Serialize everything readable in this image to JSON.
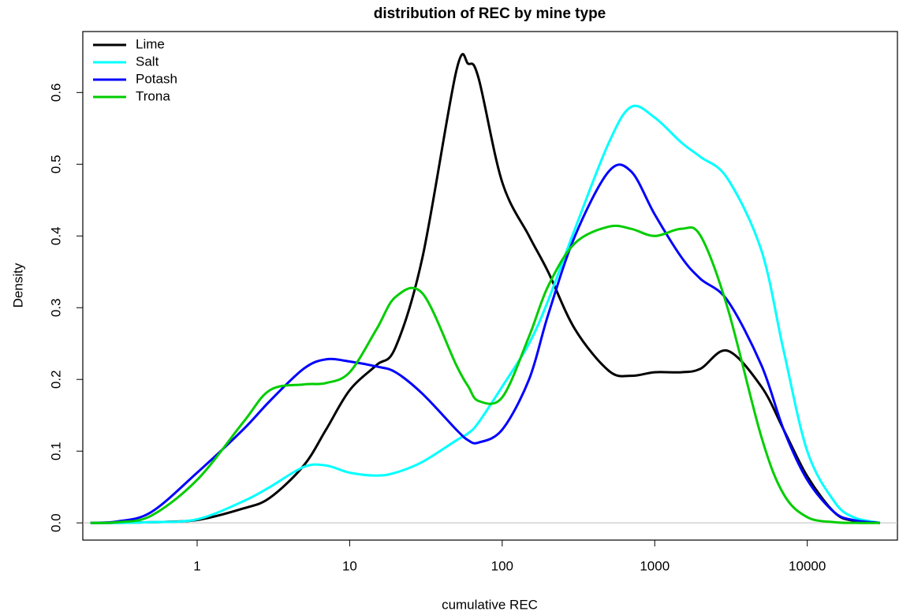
{
  "chart_data": {
    "type": "line",
    "title": "distribution of REC by mine type",
    "x_label": "cumulative REC",
    "y_label": "Density",
    "xscale": "log",
    "legend": "top-left",
    "hline": 0,
    "hline_color": "#bebebe",
    "x": [
      0.2,
      0.3,
      0.5,
      1,
      2,
      3,
      5,
      7,
      10,
      15,
      20,
      30,
      50,
      60,
      70,
      100,
      150,
      200,
      300,
      500,
      700,
      1000,
      1500,
      2000,
      3000,
      5000,
      7000,
      10000,
      15000,
      20000,
      30000
    ],
    "series": [
      {
        "name": "Lime",
        "color": "#000000",
        "values": [
          0,
          0,
          0.001,
          0.004,
          0.02,
          0.035,
          0.08,
          0.13,
          0.185,
          0.22,
          0.245,
          0.37,
          0.63,
          0.64,
          0.62,
          0.475,
          0.4,
          0.35,
          0.27,
          0.212,
          0.205,
          0.21,
          0.21,
          0.215,
          0.24,
          0.19,
          0.13,
          0.065,
          0.015,
          0.003,
          0
        ]
      },
      {
        "name": "Salt",
        "color": "#00ffff",
        "values": [
          0,
          0,
          0.001,
          0.005,
          0.03,
          0.05,
          0.078,
          0.08,
          0.07,
          0.066,
          0.07,
          0.085,
          0.115,
          0.125,
          0.14,
          0.19,
          0.25,
          0.31,
          0.41,
          0.53,
          0.58,
          0.565,
          0.53,
          0.51,
          0.48,
          0.38,
          0.24,
          0.1,
          0.03,
          0.008,
          0
        ]
      },
      {
        "name": "Potash",
        "color": "#0000ff",
        "values": [
          0,
          0.002,
          0.015,
          0.07,
          0.13,
          0.17,
          0.215,
          0.228,
          0.225,
          0.218,
          0.21,
          0.18,
          0.13,
          0.115,
          0.112,
          0.13,
          0.2,
          0.29,
          0.4,
          0.49,
          0.49,
          0.43,
          0.37,
          0.34,
          0.31,
          0.22,
          0.13,
          0.06,
          0.015,
          0.004,
          0
        ]
      },
      {
        "name": "Trona",
        "color": "#00cd00",
        "values": [
          0,
          0.001,
          0.01,
          0.06,
          0.14,
          0.185,
          0.193,
          0.195,
          0.21,
          0.27,
          0.315,
          0.32,
          0.22,
          0.19,
          0.17,
          0.175,
          0.26,
          0.33,
          0.39,
          0.413,
          0.41,
          0.4,
          0.41,
          0.4,
          0.3,
          0.12,
          0.04,
          0.008,
          0.001,
          0,
          0
        ]
      }
    ],
    "xlim": [
      0.178,
      39000
    ],
    "ylim": [
      -0.024,
      0.685
    ],
    "xticks": [
      1,
      10,
      100,
      1000,
      10000
    ],
    "yticks": [
      {
        "value": 0,
        "label": "0.0"
      },
      {
        "value": 0.1,
        "label": "0.1"
      },
      {
        "value": 0.2,
        "label": "0.2"
      },
      {
        "value": 0.3,
        "label": "0.3"
      },
      {
        "value": 0.4,
        "label": "0.4"
      },
      {
        "value": 0.5,
        "label": "0.5"
      },
      {
        "value": 0.6,
        "label": "0.6"
      }
    ]
  }
}
